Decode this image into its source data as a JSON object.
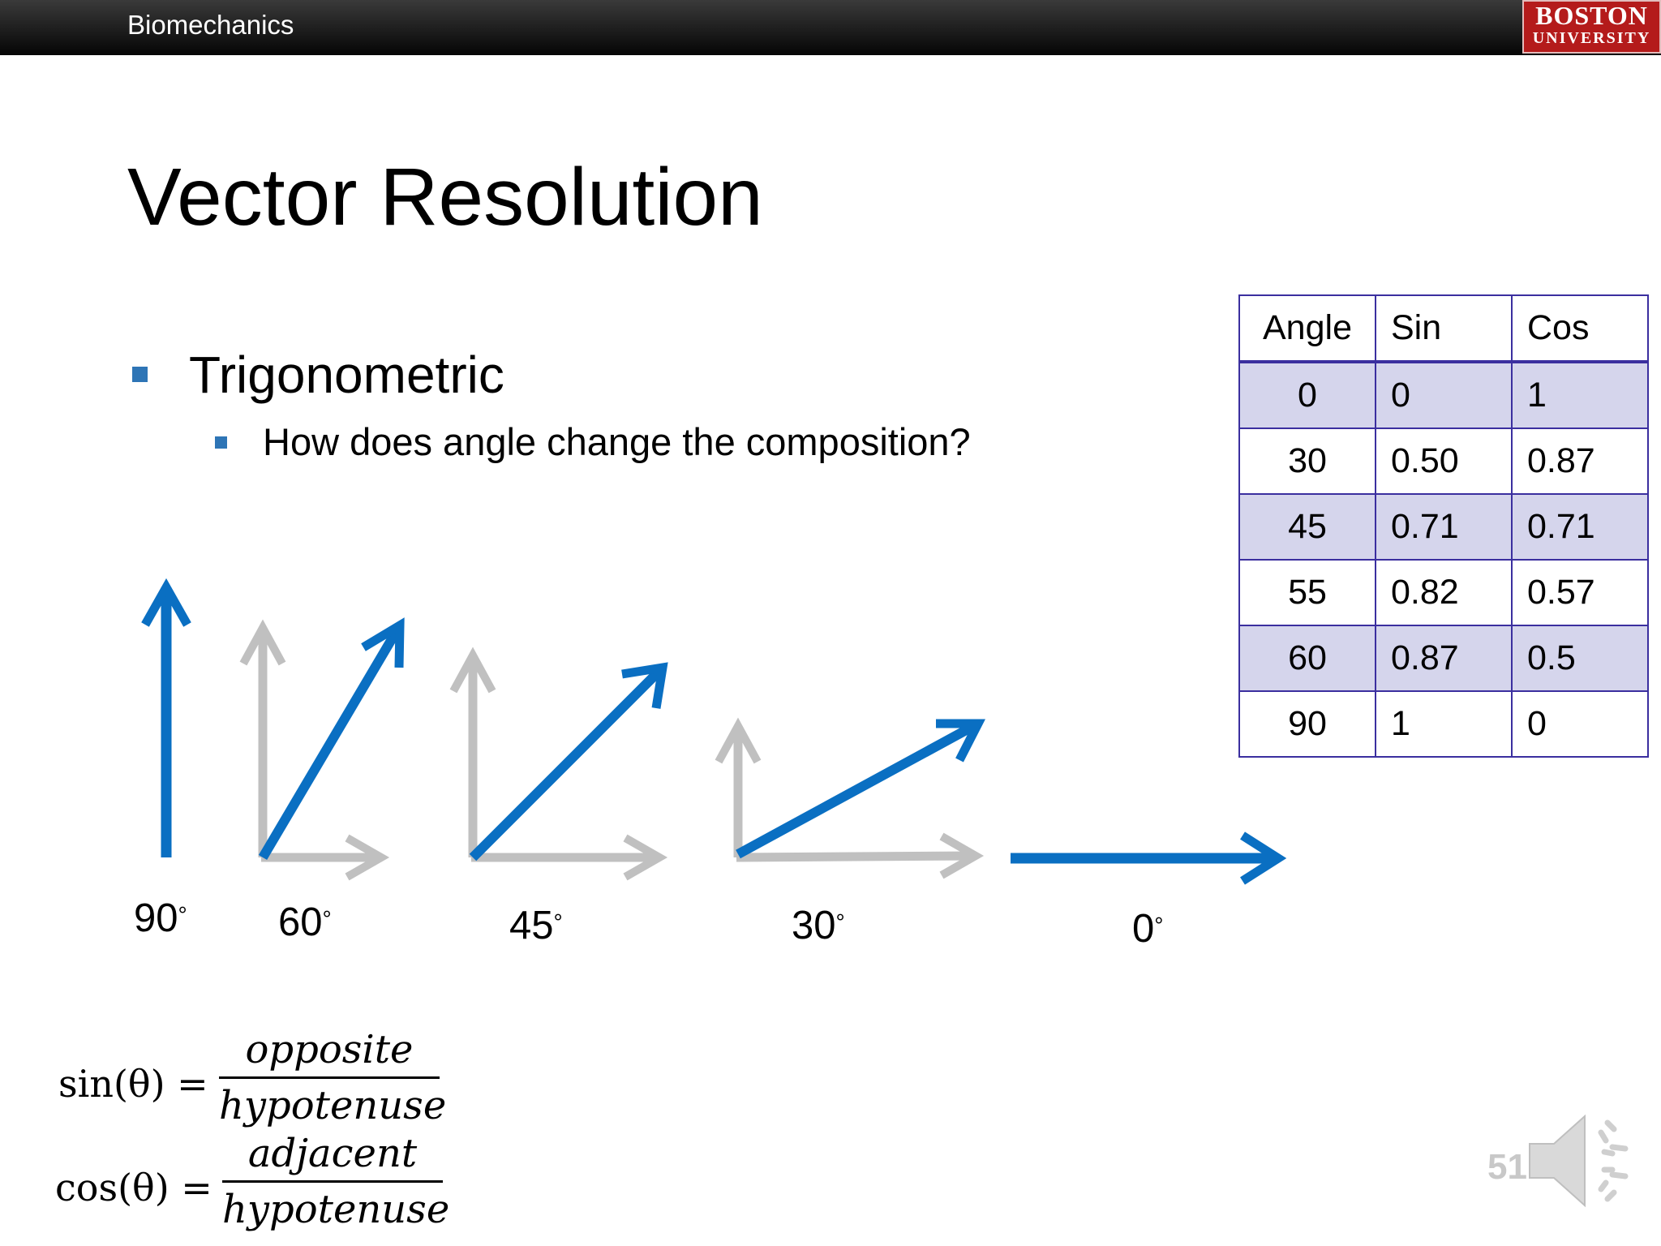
{
  "header": {
    "course": "Biomechanics",
    "logo_line1": "BOSTON",
    "logo_line2": "UNIVERSITY"
  },
  "slide": {
    "title": "Vector Resolution",
    "bullet1": "Trigonometric",
    "bullet2": "How does angle change the composition?",
    "page_number": "51"
  },
  "angle_labels": [
    "90",
    "60",
    "45",
    "30",
    "0"
  ],
  "degree_symbol": "°",
  "table": {
    "headers": [
      "Angle",
      "Sin",
      "Cos"
    ],
    "rows": [
      [
        "0",
        "0",
        "1"
      ],
      [
        "30",
        "0.50",
        "0.87"
      ],
      [
        "45",
        "0.71",
        "0.71"
      ],
      [
        "55",
        "0.82",
        "0.57"
      ],
      [
        "60",
        "0.87",
        "0.5"
      ],
      [
        "90",
        "1",
        "0"
      ]
    ]
  },
  "formulas": {
    "sin_lhs": "sin(θ) =",
    "sin_num": "opposite",
    "sin_den": "hypotenuse",
    "cos_lhs": "cos(θ) =",
    "cos_num": "adjacent",
    "cos_den": "hypotenuse"
  },
  "colors": {
    "vector_blue": "#0a6fc2",
    "component_gray": "#c0c0c0",
    "table_border": "#3b2f9f",
    "table_band": "#d5d5ec",
    "bullet_blue": "#2e75b6"
  },
  "icons": {
    "speaker": "speaker-icon"
  }
}
